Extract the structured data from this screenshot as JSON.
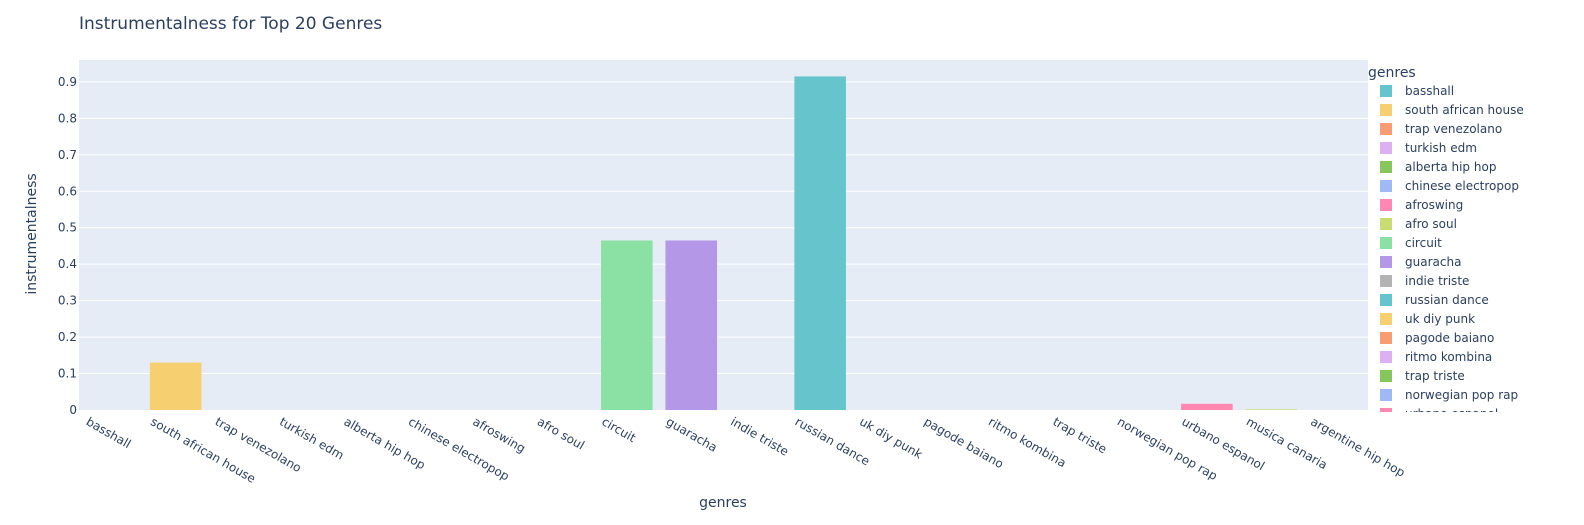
{
  "chart_data": {
    "type": "bar",
    "title": "Instrumentalness for Top 20 Genres",
    "xlabel": "genres",
    "ylabel": "instrumentalness",
    "ylim": [
      0,
      0.96
    ],
    "yticks": [
      "0",
      "0.1",
      "0.2",
      "0.3",
      "0.4",
      "0.5",
      "0.6",
      "0.7",
      "0.8",
      "0.9"
    ],
    "grid": true,
    "legend": {
      "title": "genres",
      "placement": "right"
    },
    "categories": [
      "basshall",
      "south african house",
      "trap venezolano",
      "turkish edm",
      "alberta hip hop",
      "chinese electropop",
      "afroswing",
      "afro soul",
      "circuit",
      "guaracha",
      "indie triste",
      "russian dance",
      "uk diy punk",
      "pagode baiano",
      "ritmo kombina",
      "trap triste",
      "norwegian pop rap",
      "urbano espanol",
      "musica canaria",
      "argentine hip hop"
    ],
    "values": [
      0.0,
      0.13,
      0.0,
      0.0,
      0.0,
      0.0,
      0.0,
      0.0,
      0.465,
      0.465,
      0.0,
      0.915,
      0.0,
      0.0,
      0.0,
      0.0,
      0.0,
      0.017,
      0.002,
      0.0
    ],
    "colors": [
      "#66C5CC",
      "#F6CF71",
      "#F89C74",
      "#DCB0F2",
      "#87C55F",
      "#9EB9F3",
      "#FE88B1",
      "#C9DB74",
      "#8BE0A4",
      "#B497E7",
      "#B3B3B3",
      "#66C5CC",
      "#F6CF71",
      "#F89C74",
      "#DCB0F2",
      "#87C55F",
      "#9EB9F3",
      "#FE88B1",
      "#C9DB74",
      "#8BE0A4"
    ],
    "plot_bg": "#E5ECF6"
  }
}
